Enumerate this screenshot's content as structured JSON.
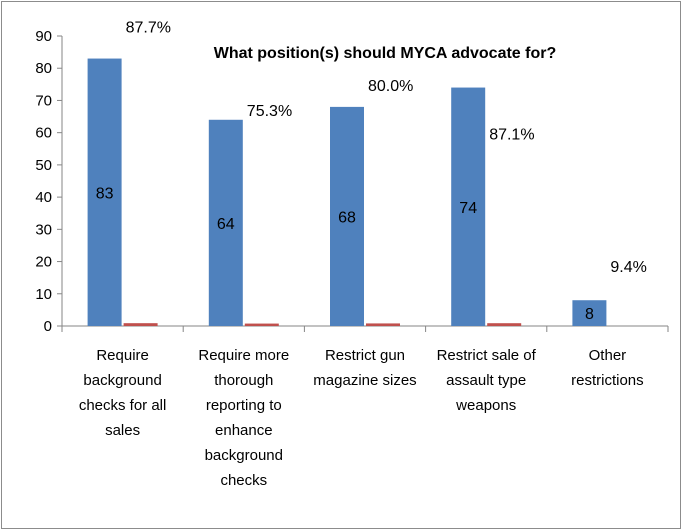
{
  "chart_data": {
    "type": "bar",
    "title": "What position(s) should MYCA advocate for?",
    "categories": [
      [
        "Require",
        "background",
        "checks for all",
        "sales"
      ],
      [
        "Require more",
        "thorough",
        "reporting to",
        "enhance",
        "background",
        "checks"
      ],
      [
        "Restrict gun",
        "magazine sizes"
      ],
      [
        "Restrict sale of",
        "assault type",
        "weapons"
      ],
      [
        "Other",
        "restrictions"
      ]
    ],
    "series": [
      {
        "values": [
          83,
          64,
          68,
          74,
          8
        ],
        "color": "#4f81bd",
        "data_labels": [
          "83",
          "64",
          "68",
          "74",
          "8"
        ]
      },
      {
        "values": [
          0.877,
          0.753,
          0.8,
          0.871,
          0.094
        ],
        "color": "#c0504d"
      }
    ],
    "percent_labels": [
      "87.7%",
      "75.3%",
      "80.0%",
      "87.1%",
      "9.4%"
    ],
    "ylim": [
      0,
      90
    ],
    "yticks": [
      "0",
      "10",
      "20",
      "30",
      "40",
      "50",
      "60",
      "70",
      "80",
      "90"
    ],
    "xlabel": "",
    "ylabel": "",
    "grid": false,
    "legend": "none"
  }
}
